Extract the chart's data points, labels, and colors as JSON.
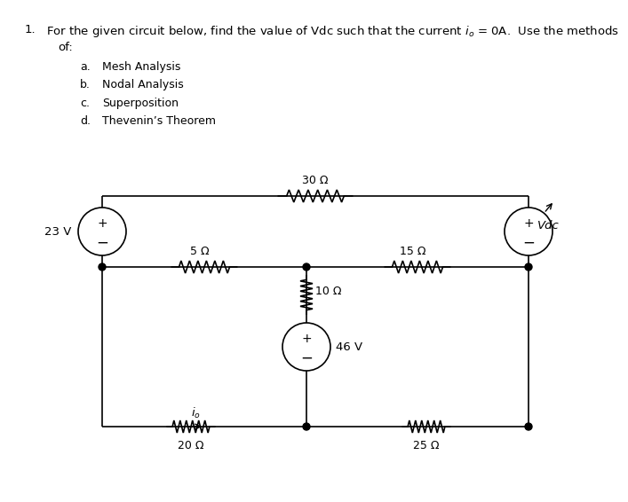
{
  "source_23v": "23 V",
  "source_46v": "46 V",
  "source_vdc": "Vdc",
  "r30": "30 Ω",
  "r5": "5 Ω",
  "r15": "15 Ω",
  "r10": "10 Ω",
  "r20": "20 Ω",
  "r25": "25 Ω",
  "bg_color": "#ffffff",
  "line_color": "#000000",
  "font_size_title": 9.5,
  "font_size_labels": 9.0,
  "font_size_methods": 9.0,
  "title_text": "For the given circuit below, find the value of Vdc such that the current ",
  "title_end": " = 0A.  Use the methods",
  "of_text": "of:",
  "method_letters": [
    "a.",
    "b.",
    "c.",
    "d."
  ],
  "method_names": [
    "Mesh Analysis",
    "Nodal Analysis",
    "Superposition",
    "Thevenin’s Theorem"
  ]
}
